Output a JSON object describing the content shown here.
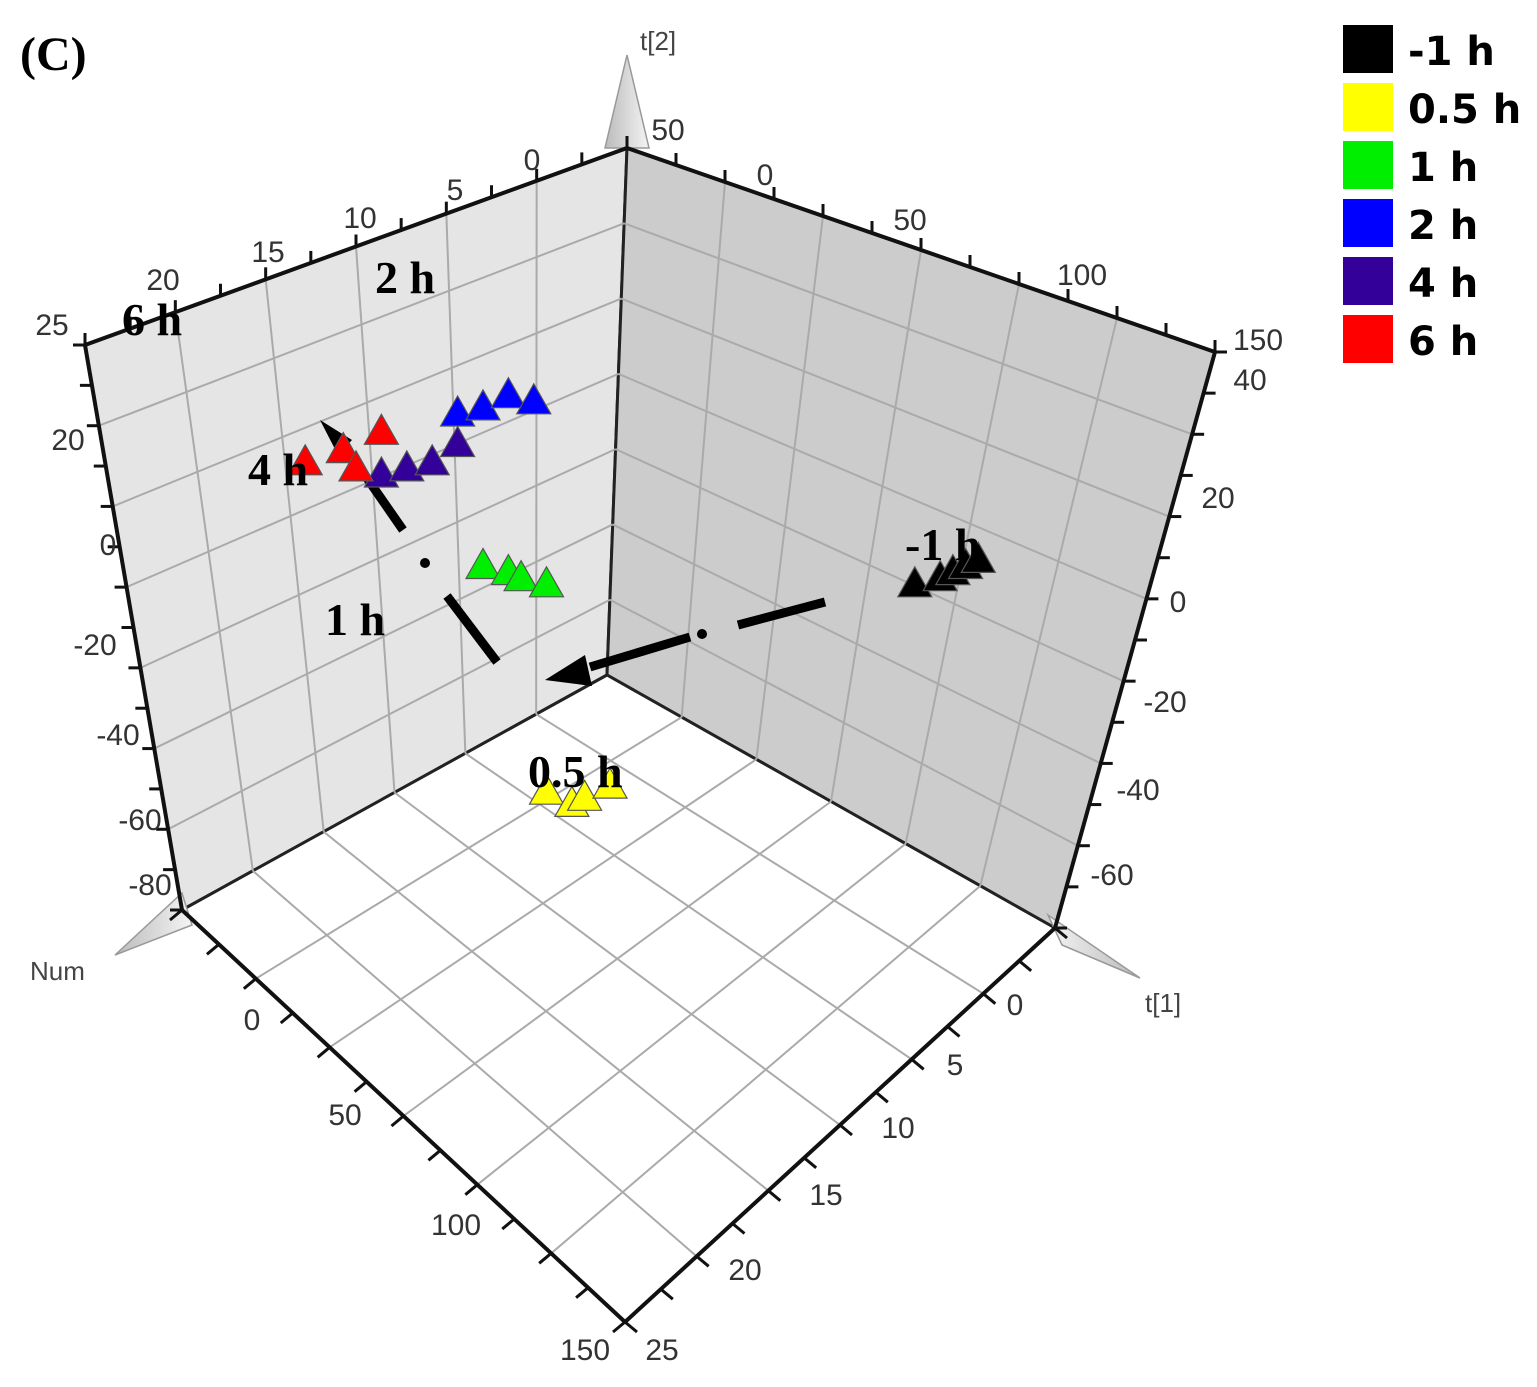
{
  "chart_data": {
    "type": "scatter",
    "panel_label": "(C)",
    "axes": {
      "x_name": "t[1]",
      "y_name": "t[2]",
      "z_name": "Num"
    },
    "ticks": {
      "x_bottom": [
        "0",
        "5",
        "10",
        "15",
        "20",
        "25"
      ],
      "num_bottom": [
        "0",
        "50",
        "100",
        "150"
      ],
      "left_vertical": [
        "20",
        "0",
        "-20",
        "-40",
        "-60",
        "-80"
      ],
      "left_top_a": [
        "0",
        "5",
        "10",
        "15",
        "20",
        "25"
      ],
      "right_top": [
        "0",
        "50",
        "100",
        "150"
      ],
      "right_vertical": [
        "40",
        "20",
        "0",
        "-20",
        "-40",
        "-60"
      ],
      "top_marker": "50"
    },
    "series": [
      {
        "name": "-1 h",
        "color": "#000000",
        "x": [
          24,
          26,
          27,
          28,
          29
        ],
        "y": [
          2,
          3,
          4,
          5,
          6
        ]
      },
      {
        "name": "0.5 h",
        "color": "#ffff00",
        "x": [
          -5,
          -3,
          -2,
          0
        ],
        "y": [
          -32,
          -34,
          -33,
          -31
        ]
      },
      {
        "name": "1 h",
        "color": "#00ee00",
        "x": [
          -10,
          -8,
          -7,
          -5
        ],
        "y": [
          5,
          4,
          3,
          2
        ]
      },
      {
        "name": "2 h",
        "color": "#0000ff",
        "x": [
          -12,
          -10,
          -8,
          -6
        ],
        "y": [
          30,
          31,
          33,
          32
        ]
      },
      {
        "name": "4 h",
        "color": "#330099",
        "x": [
          -18,
          -16,
          -14,
          -12
        ],
        "y": [
          20,
          21,
          22,
          25
        ]
      },
      {
        "name": "6 h",
        "color": "#ff0000",
        "x": [
          -24,
          -21,
          -20,
          -18
        ],
        "y": [
          22,
          24,
          21,
          27
        ]
      }
    ],
    "annotations": [
      "2 h",
      "6 h",
      "4 h",
      "1 h",
      "-1 h",
      "0.5 h"
    ],
    "legend_position": "top-right"
  },
  "legend": [
    {
      "label": "-1 h",
      "color": "#000000"
    },
    {
      "label": "0.5 h",
      "color": "#ffff00"
    },
    {
      "label": "1 h",
      "color": "#00ee00"
    },
    {
      "label": "2 h",
      "color": "#0000ff"
    },
    {
      "label": "4 h",
      "color": "#330099"
    },
    {
      "label": "6 h",
      "color": "#ff0000"
    }
  ]
}
